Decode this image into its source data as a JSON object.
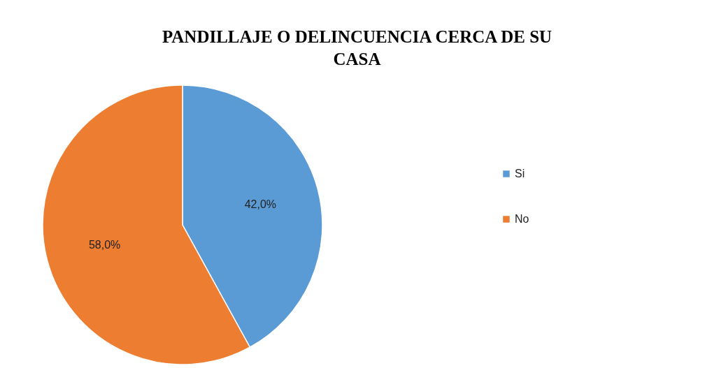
{
  "chart_data": {
    "type": "pie",
    "title": "PANDILLAJE O DELINCUENCIA CERCA DE  SU CASA",
    "categories": [
      "Si",
      "No"
    ],
    "values": [
      42.0,
      58.0
    ],
    "colors": [
      "#5b9bd5",
      "#ed7d31"
    ],
    "value_labels": [
      "42,0%",
      "58,0%"
    ],
    "legend": "right"
  }
}
